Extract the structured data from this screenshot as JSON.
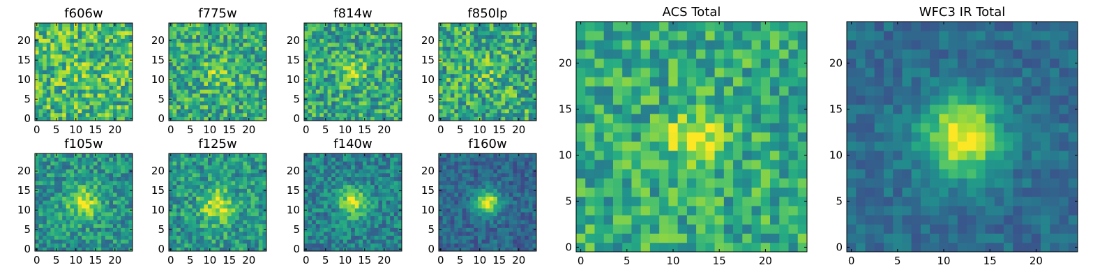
{
  "chart_data": [
    {
      "type": "heatmap",
      "title": "f606w",
      "grid": [
        25,
        25
      ],
      "xlim": [
        0,
        24
      ],
      "ylim": [
        0,
        24
      ],
      "xticks": [
        "0",
        "5",
        "10",
        "15",
        "20"
      ],
      "yticks": [
        "0",
        "5",
        "10",
        "15",
        "20"
      ],
      "colormap": "viridis",
      "source": {
        "x": 12,
        "y": 12,
        "strength": 0.05,
        "sigma": 3,
        "noise": 0.55,
        "base": 0.68,
        "seed": 11
      }
    },
    {
      "type": "heatmap",
      "title": "f775w",
      "grid": [
        25,
        25
      ],
      "xlim": [
        0,
        24
      ],
      "ylim": [
        0,
        24
      ],
      "xticks": [
        "0",
        "5",
        "10",
        "15",
        "20"
      ],
      "yticks": [
        "0",
        "5",
        "10",
        "15",
        "20"
      ],
      "colormap": "viridis",
      "source": {
        "x": 12,
        "y": 12,
        "strength": 0.2,
        "sigma": 2.5,
        "noise": 0.5,
        "base": 0.62,
        "seed": 23
      }
    },
    {
      "type": "heatmap",
      "title": "f814w",
      "grid": [
        25,
        25
      ],
      "xlim": [
        0,
        24
      ],
      "ylim": [
        0,
        24
      ],
      "xticks": [
        "0",
        "5",
        "10",
        "15",
        "20"
      ],
      "yticks": [
        "0",
        "5",
        "10",
        "15",
        "20"
      ],
      "colormap": "viridis",
      "source": {
        "x": 12,
        "y": 12,
        "strength": 0.3,
        "sigma": 2.2,
        "noise": 0.5,
        "base": 0.6,
        "seed": 37
      }
    },
    {
      "type": "heatmap",
      "title": "f850lp",
      "grid": [
        25,
        25
      ],
      "xlim": [
        0,
        24
      ],
      "ylim": [
        0,
        24
      ],
      "xticks": [
        "0",
        "5",
        "10",
        "15",
        "20"
      ],
      "yticks": [
        "0",
        "5",
        "10",
        "15",
        "20"
      ],
      "colormap": "viridis",
      "source": {
        "x": 12,
        "y": 12,
        "strength": 0.1,
        "sigma": 2.5,
        "noise": 0.55,
        "base": 0.62,
        "seed": 53
      }
    },
    {
      "type": "heatmap",
      "title": "f105w",
      "grid": [
        25,
        25
      ],
      "xlim": [
        0,
        24
      ],
      "ylim": [
        0,
        24
      ],
      "xticks": [
        "0",
        "5",
        "10",
        "15",
        "20"
      ],
      "yticks": [
        "0",
        "5",
        "10",
        "15",
        "20"
      ],
      "colormap": "viridis",
      "source": {
        "x": 12,
        "y": 12,
        "strength": 0.4,
        "sigma": 3,
        "noise": 0.4,
        "base": 0.52,
        "seed": 67
      }
    },
    {
      "type": "heatmap",
      "title": "f125w",
      "grid": [
        25,
        25
      ],
      "xlim": [
        0,
        24
      ],
      "ylim": [
        0,
        24
      ],
      "xticks": [
        "0",
        "5",
        "10",
        "15",
        "20"
      ],
      "yticks": [
        "0",
        "5",
        "10",
        "15",
        "20"
      ],
      "colormap": "viridis",
      "source": {
        "x": 12,
        "y": 11,
        "strength": 0.4,
        "sigma": 3,
        "noise": 0.42,
        "base": 0.54,
        "seed": 79
      }
    },
    {
      "type": "heatmap",
      "title": "f140w",
      "grid": [
        25,
        25
      ],
      "xlim": [
        0,
        24
      ],
      "ylim": [
        0,
        24
      ],
      "xticks": [
        "0",
        "5",
        "10",
        "15",
        "20"
      ],
      "yticks": [
        "0",
        "5",
        "10",
        "15",
        "20"
      ],
      "colormap": "viridis",
      "source": {
        "x": 12,
        "y": 12,
        "strength": 0.5,
        "sigma": 2.5,
        "noise": 0.36,
        "base": 0.45,
        "seed": 97
      }
    },
    {
      "type": "heatmap",
      "title": "f160w",
      "grid": [
        25,
        25
      ],
      "xlim": [
        0,
        24
      ],
      "ylim": [
        0,
        24
      ],
      "xticks": [
        "0",
        "5",
        "10",
        "15",
        "20"
      ],
      "yticks": [
        "0",
        "5",
        "10",
        "15",
        "20"
      ],
      "colormap": "viridis",
      "source": {
        "x": 12,
        "y": 12,
        "strength": 0.65,
        "sigma": 2.2,
        "noise": 0.26,
        "base": 0.34,
        "seed": 131
      }
    },
    {
      "type": "heatmap",
      "title": "ACS Total",
      "grid": [
        25,
        25
      ],
      "xlim": [
        0,
        24
      ],
      "ylim": [
        0,
        24
      ],
      "xticks": [
        "0",
        "5",
        "10",
        "15",
        "20"
      ],
      "yticks": [
        "0",
        "5",
        "10",
        "15",
        "20"
      ],
      "colormap": "viridis",
      "source": {
        "x": 12,
        "y": 12,
        "strength": 0.35,
        "sigma": 2,
        "noise": 0.42,
        "base": 0.62,
        "seed": 151
      }
    },
    {
      "type": "heatmap",
      "title": "WFC3 IR Total",
      "grid": [
        25,
        25
      ],
      "xlim": [
        0,
        24
      ],
      "ylim": [
        0,
        24
      ],
      "xticks": [
        "0",
        "5",
        "10",
        "15",
        "20"
      ],
      "yticks": [
        "0",
        "5",
        "10",
        "15",
        "20"
      ],
      "colormap": "viridis",
      "source": {
        "x": 12,
        "y": 12,
        "strength": 0.65,
        "sigma": 3,
        "noise": 0.2,
        "base": 0.36,
        "seed": 173
      }
    }
  ]
}
